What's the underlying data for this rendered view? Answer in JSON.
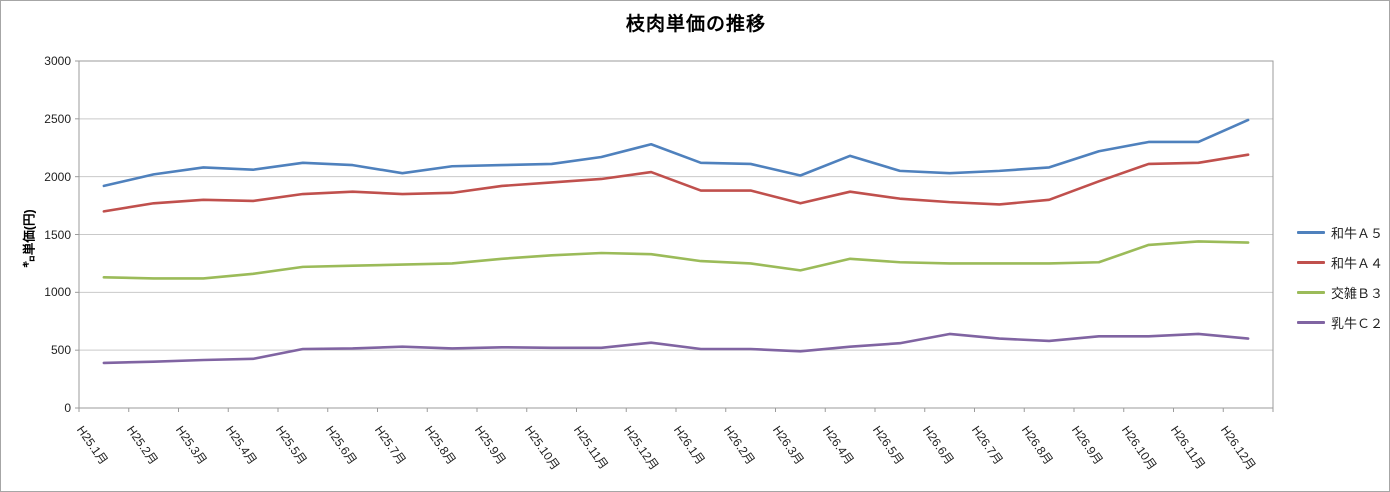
{
  "chart_data": {
    "type": "line",
    "title": "枝肉単価の推移",
    "ylabel": "㌔単価(円)",
    "xlabel": "",
    "ylim": [
      0,
      3000
    ],
    "yticks": [
      0,
      500,
      1000,
      1500,
      2000,
      2500,
      3000
    ],
    "grid": true,
    "legend_position": "right",
    "x_label_rotation_deg": 55,
    "categories": [
      "H25.1月",
      "H25.2月",
      "H25.3月",
      "H25.4月",
      "H25.5月",
      "H25.6月",
      "H25.7月",
      "H25.8月",
      "H25.9月",
      "H25.10月",
      "H25.11月",
      "H25.12月",
      "H26.1月",
      "H26.2月",
      "H26.3月",
      "H26.4月",
      "H26.5月",
      "H26.6月",
      "H26.7月",
      "H26.8月",
      "H26.9月",
      "H26.10月",
      "H26.11月",
      "H26.12月"
    ],
    "series": [
      {
        "name": "和牛Ａ５",
        "color": "#4F81BD",
        "values": [
          1920,
          2020,
          2080,
          2060,
          2120,
          2100,
          2030,
          2090,
          2100,
          2110,
          2170,
          2280,
          2120,
          2110,
          2010,
          2180,
          2050,
          2030,
          2050,
          2080,
          2220,
          2300,
          2300,
          2490
        ]
      },
      {
        "name": "和牛Ａ４",
        "color": "#C0504D",
        "values": [
          1700,
          1770,
          1800,
          1790,
          1850,
          1870,
          1850,
          1860,
          1920,
          1950,
          1980,
          2040,
          1880,
          1880,
          1770,
          1870,
          1810,
          1780,
          1760,
          1800,
          1960,
          2110,
          2120,
          2190
        ]
      },
      {
        "name": "交雑Ｂ３",
        "color": "#9BBB59",
        "values": [
          1130,
          1120,
          1120,
          1160,
          1220,
          1230,
          1240,
          1250,
          1290,
          1320,
          1340,
          1330,
          1270,
          1250,
          1190,
          1290,
          1260,
          1250,
          1250,
          1250,
          1260,
          1410,
          1440,
          1430
        ]
      },
      {
        "name": "乳牛Ｃ２",
        "color": "#8064A2",
        "values": [
          390,
          400,
          415,
          425,
          510,
          515,
          530,
          515,
          525,
          520,
          520,
          565,
          510,
          510,
          490,
          530,
          560,
          640,
          600,
          580,
          620,
          620,
          640,
          600
        ]
      }
    ]
  }
}
